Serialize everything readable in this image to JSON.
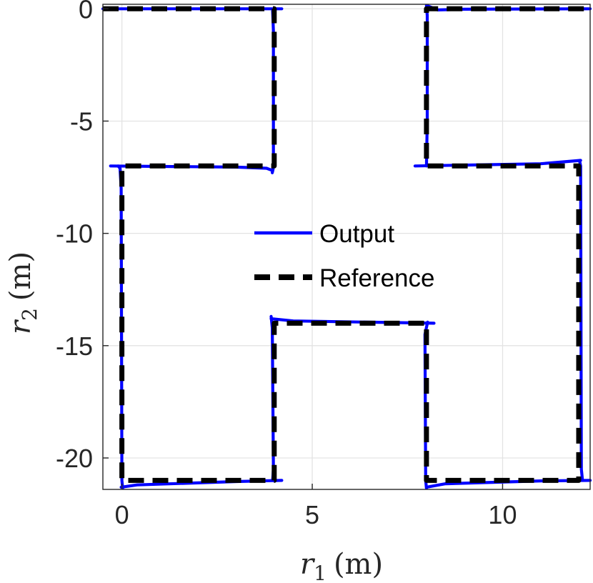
{
  "chart_data": {
    "type": "line",
    "xlabel": {
      "var": "r",
      "sub": "1",
      "unit": "(m)"
    },
    "ylabel": {
      "var": "r",
      "sub": "2",
      "unit": "(m)"
    },
    "xlim": [
      -0.5,
      12.3
    ],
    "ylim": [
      -21.4,
      0.2
    ],
    "xticks": [
      0,
      5,
      10
    ],
    "yticks": [
      0,
      -5,
      -10,
      -15,
      -20
    ],
    "xtick_labels": [
      "0",
      "5",
      "10"
    ],
    "ytick_labels": [
      "0",
      "-5",
      "-10",
      "-15",
      "-20"
    ],
    "grid": true,
    "legend": {
      "placement": "center"
    },
    "series": [
      {
        "name": "Output",
        "color": "#0000ff",
        "style": "solid",
        "segments": [
          [
            [
              -0.5,
              0
            ],
            [
              4.2,
              0
            ]
          ],
          [
            [
              3.96,
              -0.1
            ],
            [
              3.98,
              -1.0
            ],
            [
              3.98,
              -6.9
            ],
            [
              3.97,
              -7.15
            ],
            [
              3.95,
              -7.3
            ]
          ],
          [
            [
              -0.3,
              -7.0
            ],
            [
              3.0,
              -7.05
            ],
            [
              3.8,
              -7.1
            ],
            [
              3.95,
              -7.2
            ]
          ],
          [
            [
              -0.1,
              -7.0
            ],
            [
              -0.05,
              -7.1
            ],
            [
              -0.02,
              -8.0
            ],
            [
              0.0,
              -21.0
            ],
            [
              0.02,
              -21.35
            ]
          ],
          [
            [
              -0.02,
              -21.3
            ],
            [
              0.4,
              -21.2
            ],
            [
              3.0,
              -21.05
            ],
            [
              4.2,
              -21.0
            ]
          ],
          [
            [
              3.96,
              -21.0
            ],
            [
              3.98,
              -20.5
            ],
            [
              3.95,
              -14.2
            ],
            [
              3.92,
              -13.7
            ]
          ],
          [
            [
              3.92,
              -13.8
            ],
            [
              4.5,
              -13.9
            ],
            [
              8.2,
              -14.0
            ]
          ],
          [
            [
              8.03,
              -13.95
            ],
            [
              7.96,
              -14.5
            ],
            [
              7.98,
              -21.0
            ],
            [
              8.0,
              -21.35
            ]
          ],
          [
            [
              8.0,
              -21.3
            ],
            [
              8.5,
              -21.15
            ],
            [
              11.0,
              -21.02
            ],
            [
              12.3,
              -21.0
            ]
          ],
          [
            [
              12.1,
              -21.0
            ],
            [
              12.07,
              -20.5
            ],
            [
              12.05,
              -7.0
            ],
            [
              12.02,
              -6.75
            ]
          ],
          [
            [
              7.7,
              -7.0
            ],
            [
              11.0,
              -6.9
            ],
            [
              12.05,
              -6.75
            ]
          ],
          [
            [
              8.0,
              -7.0
            ],
            [
              8.02,
              -5.0
            ],
            [
              8.02,
              -0.3
            ],
            [
              8.0,
              0.1
            ]
          ],
          [
            [
              8.0,
              0.15
            ],
            [
              8.3,
              -0.05
            ],
            [
              9.0,
              -0.02
            ],
            [
              12.3,
              0
            ]
          ]
        ]
      },
      {
        "name": "Reference",
        "color": "#000000",
        "style": "dashed",
        "segments": [
          [
            [
              -0.5,
              0
            ],
            [
              4.0,
              0
            ],
            [
              4.0,
              -7.0
            ],
            [
              0.0,
              -7.0
            ],
            [
              0.0,
              -21.0
            ],
            [
              4.0,
              -21.0
            ],
            [
              4.0,
              -14.0
            ],
            [
              8.0,
              -14.0
            ],
            [
              8.0,
              -21.0
            ],
            [
              12.0,
              -21.0
            ],
            [
              12.0,
              -7.0
            ],
            [
              8.0,
              -7.0
            ],
            [
              8.0,
              0.0
            ],
            [
              12.3,
              0.0
            ]
          ]
        ]
      }
    ]
  }
}
